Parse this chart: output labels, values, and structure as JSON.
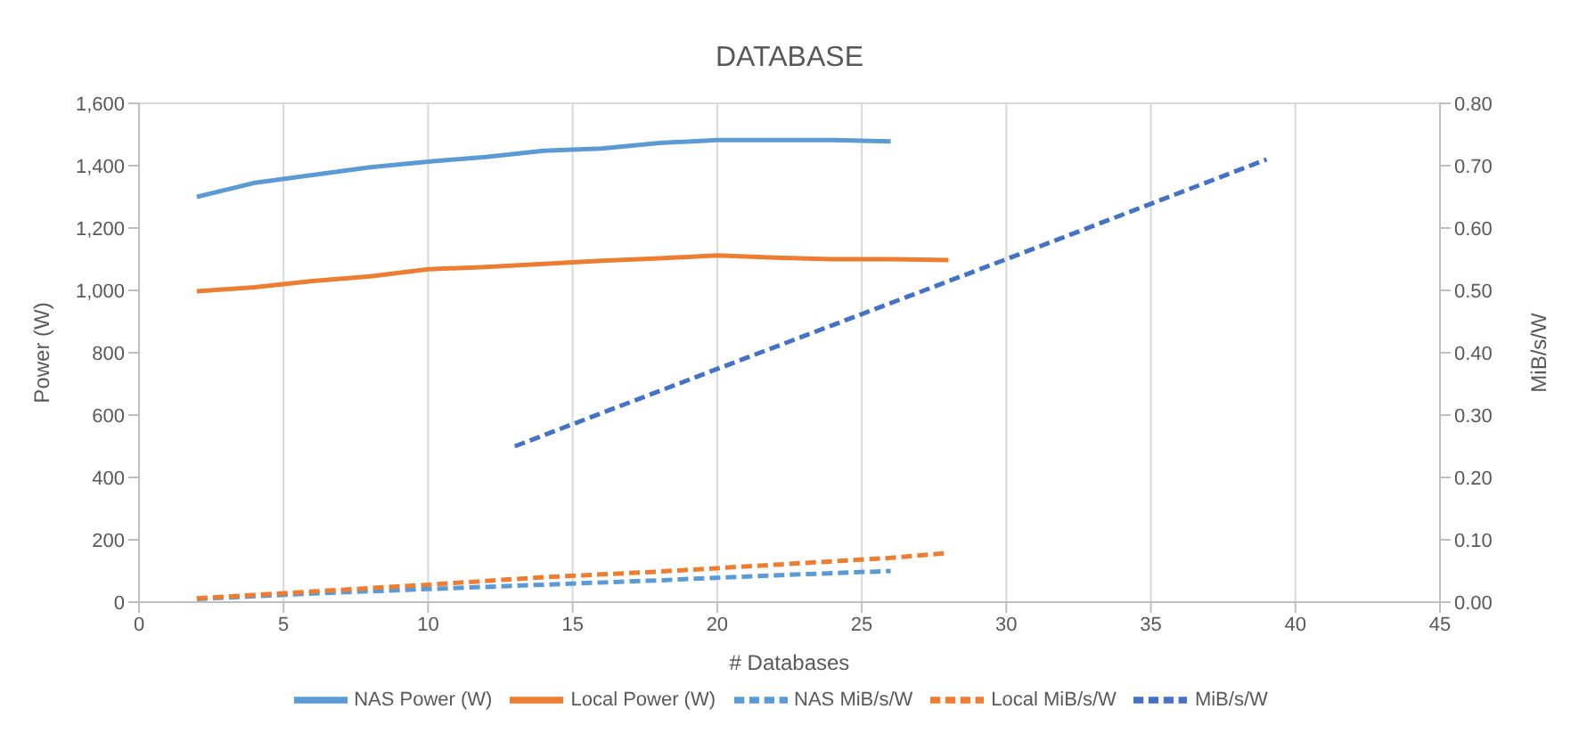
{
  "chart_data": {
    "type": "line",
    "title": "DATABASE",
    "xlabel": "# Databases",
    "ylabel": "Power (W)",
    "y2label": "MiB/s/W",
    "xlim": [
      0,
      45
    ],
    "xticks": [
      0,
      5,
      10,
      15,
      20,
      25,
      30,
      35,
      40,
      45
    ],
    "ylim": [
      0,
      1600
    ],
    "yticks": [
      {
        "value": 0,
        "label": "0"
      },
      {
        "value": 200,
        "label": "200"
      },
      {
        "value": 400,
        "label": "400"
      },
      {
        "value": 600,
        "label": "600"
      },
      {
        "value": 800,
        "label": "800"
      },
      {
        "value": 1000,
        "label": "1,000"
      },
      {
        "value": 1200,
        "label": "1,200"
      },
      {
        "value": 1400,
        "label": "1,400"
      },
      {
        "value": 1600,
        "label": "1,600"
      }
    ],
    "y2lim": [
      0,
      0.8
    ],
    "y2ticks": [
      {
        "value": 0,
        "label": "0.00"
      },
      {
        "value": 0.1,
        "label": "0.10"
      },
      {
        "value": 0.2,
        "label": "0.20"
      },
      {
        "value": 0.3,
        "label": "0.30"
      },
      {
        "value": 0.4,
        "label": "0.40"
      },
      {
        "value": 0.5,
        "label": "0.50"
      },
      {
        "value": 0.6,
        "label": "0.60"
      },
      {
        "value": 0.7,
        "label": "0.70"
      },
      {
        "value": 0.8,
        "label": "0.80"
      }
    ],
    "grid": true,
    "legend": "bottom",
    "marker": "none",
    "series": [
      {
        "name": "NAS Power (W)",
        "color": "#5b9bd5",
        "line_style": "solid",
        "x": [
          2,
          4,
          6,
          8,
          10,
          12,
          14,
          16,
          18,
          20,
          22,
          24,
          26
        ],
        "values": [
          1300,
          1345,
          1370,
          1395,
          1413,
          1428,
          1448,
          1455,
          1473,
          1482,
          1482,
          1482,
          1478
        ]
      },
      {
        "name": "Local Power (W)",
        "color": "#ed7d31",
        "line_style": "solid",
        "x": [
          2,
          4,
          6,
          8,
          10,
          12,
          14,
          16,
          18,
          20,
          22,
          24,
          26,
          28
        ],
        "values": [
          997,
          1010,
          1030,
          1045,
          1068,
          1075,
          1085,
          1095,
          1103,
          1112,
          1105,
          1100,
          1100,
          1097
        ]
      },
      {
        "name": "NAS MiB/s/W",
        "color": "#5b9bd5",
        "line_style": "dashed",
        "axis": "y2",
        "x": [
          2,
          6,
          10,
          14,
          18,
          22,
          26
        ],
        "values": [
          0.005,
          0.014,
          0.021,
          0.028,
          0.035,
          0.043,
          0.05
        ]
      },
      {
        "name": "Local MiB/s/W",
        "color": "#ed7d31",
        "line_style": "dashed",
        "axis": "y2",
        "x": [
          2,
          6,
          10,
          14,
          18,
          22,
          26,
          28
        ],
        "values": [
          0.006,
          0.017,
          0.028,
          0.04,
          0.049,
          0.06,
          0.071,
          0.079
        ]
      },
      {
        "name": "MiB/s/W",
        "color": "#4472c4",
        "line_style": "dashed",
        "axis": "y2",
        "x": [
          13,
          20,
          30,
          39
        ],
        "values": [
          0.25,
          0.374,
          0.55,
          0.71
        ]
      }
    ]
  }
}
